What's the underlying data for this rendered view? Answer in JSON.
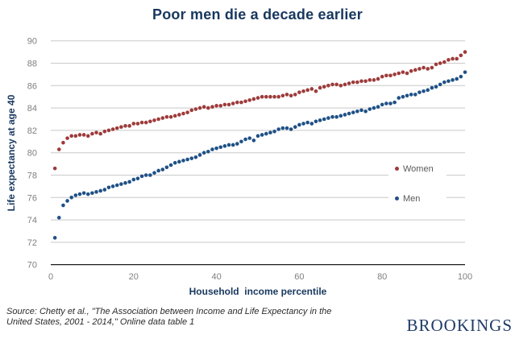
{
  "header": {
    "title": "Poor men die a decade earlier"
  },
  "colors": {
    "title_navy": "#17375E",
    "women": "#9E3B3B",
    "men": "#1F5186",
    "grid": "#C9C9C9",
    "axis": "#000000",
    "tick": "#7F7F7F",
    "legend_text": "#595959",
    "source_text": "#2b2b2b",
    "logo": "#1E3A68"
  },
  "chart_data": {
    "type": "scatter",
    "title": "Poor men die a decade earlier",
    "xlabel": "Household  income percentile",
    "ylabel": "Life expectancy at age 40",
    "xlim": [
      0,
      100
    ],
    "ylim": [
      70,
      90
    ],
    "x_ticks": [
      0,
      20,
      40,
      60,
      80,
      100
    ],
    "y_ticks": [
      70,
      72,
      74,
      76,
      78,
      80,
      82,
      84,
      86,
      88,
      90
    ],
    "grid": true,
    "legend_position": "right-middle",
    "x": [
      1,
      2,
      3,
      4,
      5,
      6,
      7,
      8,
      9,
      10,
      11,
      12,
      13,
      14,
      15,
      16,
      17,
      18,
      19,
      20,
      21,
      22,
      23,
      24,
      25,
      26,
      27,
      28,
      29,
      30,
      31,
      32,
      33,
      34,
      35,
      36,
      37,
      38,
      39,
      40,
      41,
      42,
      43,
      44,
      45,
      46,
      47,
      48,
      49,
      50,
      51,
      52,
      53,
      54,
      55,
      56,
      57,
      58,
      59,
      60,
      61,
      62,
      63,
      64,
      65,
      66,
      67,
      68,
      69,
      70,
      71,
      72,
      73,
      74,
      75,
      76,
      77,
      78,
      79,
      80,
      81,
      82,
      83,
      84,
      85,
      86,
      87,
      88,
      89,
      90,
      91,
      92,
      93,
      94,
      95,
      96,
      97,
      98,
      99,
      100
    ],
    "series": [
      {
        "name": "Women",
        "color": "#9E3B3B",
        "values": [
          78.6,
          80.3,
          80.9,
          81.3,
          81.5,
          81.5,
          81.6,
          81.6,
          81.5,
          81.7,
          81.8,
          81.7,
          81.9,
          82.0,
          82.1,
          82.2,
          82.3,
          82.4,
          82.4,
          82.6,
          82.6,
          82.7,
          82.7,
          82.8,
          82.9,
          83.0,
          83.1,
          83.2,
          83.2,
          83.3,
          83.4,
          83.5,
          83.6,
          83.8,
          83.9,
          84.0,
          84.1,
          84.0,
          84.1,
          84.2,
          84.2,
          84.3,
          84.3,
          84.4,
          84.5,
          84.5,
          84.6,
          84.7,
          84.8,
          84.9,
          85.0,
          85.0,
          85.0,
          85.0,
          85.0,
          85.1,
          85.2,
          85.1,
          85.2,
          85.4,
          85.5,
          85.6,
          85.7,
          85.5,
          85.8,
          85.9,
          86.0,
          86.1,
          86.1,
          86.0,
          86.1,
          86.2,
          86.3,
          86.3,
          86.4,
          86.4,
          86.5,
          86.5,
          86.6,
          86.8,
          86.9,
          86.9,
          87.0,
          87.1,
          87.2,
          87.1,
          87.3,
          87.4,
          87.5,
          87.6,
          87.5,
          87.6,
          87.9,
          88.0,
          88.1,
          88.3,
          88.4,
          88.4,
          88.7,
          89.0
        ]
      },
      {
        "name": "Men",
        "color": "#1F5186",
        "values": [
          72.4,
          74.2,
          75.3,
          75.7,
          76.0,
          76.2,
          76.3,
          76.4,
          76.3,
          76.4,
          76.5,
          76.6,
          76.7,
          76.9,
          77.0,
          77.1,
          77.2,
          77.3,
          77.4,
          77.6,
          77.7,
          77.9,
          78.0,
          78.0,
          78.2,
          78.4,
          78.5,
          78.7,
          78.9,
          79.1,
          79.2,
          79.3,
          79.4,
          79.5,
          79.6,
          79.8,
          80.0,
          80.1,
          80.3,
          80.4,
          80.5,
          80.6,
          80.7,
          80.7,
          80.8,
          81.0,
          81.2,
          81.3,
          81.1,
          81.5,
          81.6,
          81.7,
          81.8,
          81.9,
          82.1,
          82.2,
          82.2,
          82.1,
          82.3,
          82.5,
          82.6,
          82.7,
          82.6,
          82.8,
          82.9,
          83.0,
          83.1,
          83.2,
          83.2,
          83.3,
          83.4,
          83.5,
          83.6,
          83.7,
          83.8,
          83.7,
          83.9,
          84.0,
          84.1,
          84.3,
          84.4,
          84.4,
          84.5,
          84.9,
          85.0,
          85.1,
          85.2,
          85.2,
          85.4,
          85.5,
          85.6,
          85.8,
          85.9,
          86.1,
          86.3,
          86.4,
          86.5,
          86.6,
          86.8,
          87.2
        ]
      }
    ]
  },
  "footer": {
    "source_line1": "Source: Chetty et al., \"The Association between Income and Life Expectancy in the",
    "source_line2": "United States, 2001 - 2014,\" Online data table 1",
    "logo": "BROOKINGS"
  }
}
